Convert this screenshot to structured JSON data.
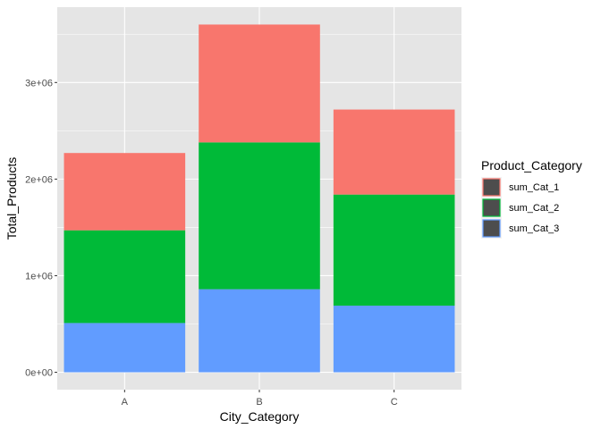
{
  "chart_data": {
    "type": "bar",
    "stacked": true,
    "categories": [
      "A",
      "B",
      "C"
    ],
    "series": [
      {
        "name": "sum_Cat_1",
        "color": "#F8766D",
        "values": [
          800000,
          1220000,
          880000
        ]
      },
      {
        "name": "sum_Cat_2",
        "color": "#00BA38",
        "values": [
          960000,
          1520000,
          1150000
        ]
      },
      {
        "name": "sum_Cat_3",
        "color": "#619CFF",
        "values": [
          510000,
          860000,
          690000
        ]
      }
    ],
    "stack_order_bottom_to_top": [
      "sum_Cat_3",
      "sum_Cat_2",
      "sum_Cat_1"
    ],
    "xlabel": "City_Category",
    "ylabel": "Total_Products",
    "ylim": [
      -180000,
      3780000
    ],
    "yticks": [
      0,
      1000000,
      2000000,
      3000000
    ],
    "ytick_labels": [
      "0e+00",
      "1e+06",
      "2e+06",
      "3e+06"
    ],
    "legend": {
      "title": "Product_Category",
      "position": "right"
    },
    "grid": true,
    "panel_background": "#E5E5E5",
    "grid_color": "#FFFFFF"
  }
}
